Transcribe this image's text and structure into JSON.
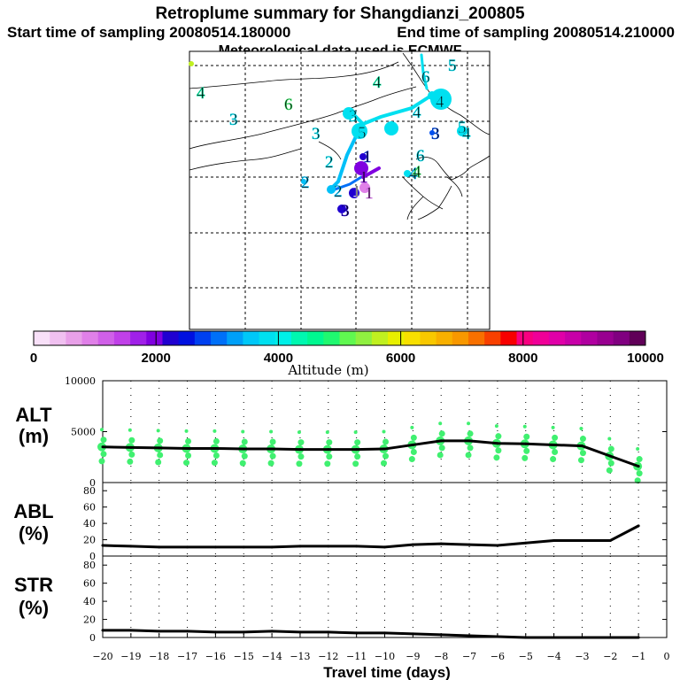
{
  "header": {
    "title": "Retroplume summary for Shangdianzi_200805",
    "start_time": "Start time of sampling 20080514.180000",
    "end_time": "End time of sampling 20080514.210000",
    "met_data": "Meteorological data used is ECMWF"
  },
  "colorbar": {
    "label": "Altitude (m)",
    "ticks": [
      "0",
      "2000",
      "4000",
      "6000",
      "8000",
      "10000"
    ],
    "colors": [
      "#f8e0f8",
      "#f0c0f0",
      "#e8a0e8",
      "#e080e8",
      "#d060e8",
      "#c040e8",
      "#a020e8",
      "#8000e0",
      "#2000d0",
      "#0010e0",
      "#0040f0",
      "#0070f8",
      "#00a0f8",
      "#00c8f8",
      "#00e0f0",
      "#00f0e8",
      "#00f8b0",
      "#00f890",
      "#20f870",
      "#60f850",
      "#90f040",
      "#c0f020",
      "#e8f000",
      "#f8e000",
      "#f8c800",
      "#f8b000",
      "#f89800",
      "#f87000",
      "#f84000",
      "#f80000",
      "#f80080",
      "#f00098",
      "#e000a8",
      "#c800a8",
      "#b000a0",
      "#980090",
      "#800080",
      "#600058"
    ]
  },
  "map": {
    "labels": [
      {
        "t": "4",
        "c": "#00e8a0"
      },
      {
        "t": "3",
        "c": "#00e0f0"
      },
      {
        "t": "6",
        "c": "#40f070"
      },
      {
        "t": "4",
        "c": "#00e8a0"
      },
      {
        "t": "6",
        "c": "#00e0f0"
      },
      {
        "t": "5",
        "c": "#00e0f0"
      },
      {
        "t": "4",
        "c": "#00e0f0"
      },
      {
        "t": "4",
        "c": "#00e0f0"
      },
      {
        "t": "3",
        "c": "#00e0f0"
      },
      {
        "t": "5",
        "c": "#00e0f0"
      },
      {
        "t": "3",
        "c": "#00e0f0"
      },
      {
        "t": "3",
        "c": "#0050f0"
      },
      {
        "t": "5",
        "c": "#00e0f0"
      },
      {
        "t": "4",
        "c": "#00e0f0"
      },
      {
        "t": "1",
        "c": "#0030e0"
      },
      {
        "t": "6",
        "c": "#00e0f0"
      },
      {
        "t": "2",
        "c": "#00e0f0"
      },
      {
        "t": "1",
        "c": "#8000e0"
      },
      {
        "t": "4",
        "c": "#00c0f8"
      },
      {
        "t": "2",
        "c": "#00c0f8"
      },
      {
        "t": "2",
        "c": "#00c0f8"
      },
      {
        "t": "1",
        "c": "#d060e8"
      },
      {
        "t": "4",
        "c": "#40f070"
      },
      {
        "t": "3",
        "c": "#2000d0"
      },
      {
        "t": "1",
        "c": "#ffffff"
      }
    ]
  },
  "chart_data": [
    {
      "type": "line",
      "panel": "ALT",
      "ylabel": "ALT\n(m)",
      "ylabel_line1": "ALT",
      "ylabel_line2": "(m)",
      "ylim": [
        0,
        10000
      ],
      "yticks": [
        "10000",
        "5000",
        "0"
      ],
      "x": [
        -20,
        -19,
        -18,
        -17,
        -16,
        -15,
        -14,
        -13,
        -12,
        -11,
        -10,
        -9,
        -8,
        -7,
        -6,
        -5,
        -4,
        -3,
        -2,
        -1
      ],
      "values": [
        3500,
        3450,
        3400,
        3350,
        3350,
        3300,
        3300,
        3250,
        3250,
        3250,
        3300,
        3700,
        4100,
        4100,
        3850,
        3800,
        3700,
        3600,
        2600,
        1600
      ],
      "scatter_color": "#40f070"
    },
    {
      "type": "line",
      "panel": "ABL",
      "ylabel_line1": "ABL",
      "ylabel_line2": "(%)",
      "ylim": [
        0,
        90
      ],
      "yticks": [
        "80",
        "60",
        "40",
        "20",
        "0"
      ],
      "x": [
        -20,
        -19,
        -18,
        -17,
        -16,
        -15,
        -14,
        -13,
        -12,
        -11,
        -10,
        -9,
        -8,
        -7,
        -6,
        -5,
        -4,
        -3,
        -2,
        -1
      ],
      "values": [
        13,
        12,
        11,
        11,
        11,
        11,
        11,
        12,
        12,
        12,
        11,
        14,
        15,
        14,
        13,
        16,
        19,
        19,
        19,
        37
      ]
    },
    {
      "type": "line",
      "panel": "STR",
      "ylabel_line1": "STR",
      "ylabel_line2": "(%)",
      "ylim": [
        0,
        90
      ],
      "yticks": [
        "80",
        "60",
        "40",
        "20",
        "0"
      ],
      "x": [
        -20,
        -19,
        -18,
        -17,
        -16,
        -15,
        -14,
        -13,
        -12,
        -11,
        -10,
        -9,
        -8,
        -7,
        -6,
        -5,
        -4,
        -3,
        -2,
        -1
      ],
      "values": [
        8,
        8,
        7,
        7,
        6,
        6,
        7,
        6,
        6,
        5,
        5,
        4,
        3,
        2,
        1,
        0,
        0,
        0,
        0,
        0
      ]
    }
  ],
  "x_axis": {
    "xlabel": "Travel time (days)",
    "ticks": [
      "−20",
      "−19",
      "−18",
      "−17",
      "−16",
      "−15",
      "−14",
      "−13",
      "−12",
      "−11",
      "−10",
      "−9",
      "−8",
      "−7",
      "−6",
      "−5",
      "−4",
      "−3",
      "−2",
      "−1",
      "0"
    ]
  }
}
